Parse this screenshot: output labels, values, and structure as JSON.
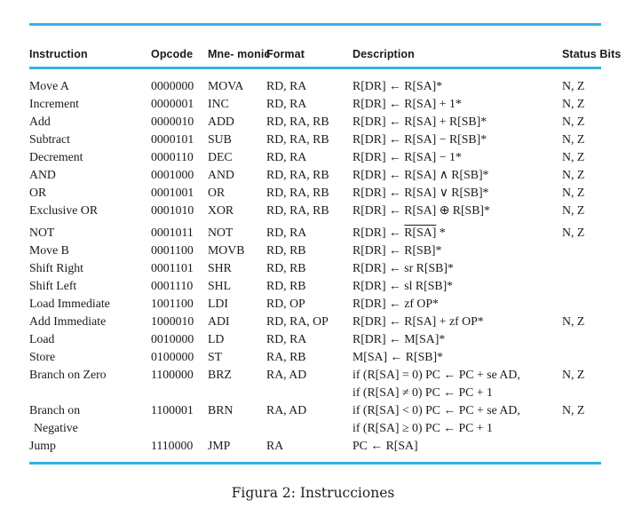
{
  "colors": {
    "rule": "#35b2e3",
    "text": "#1a1a1a"
  },
  "header": {
    "instruction": "Instruction",
    "opcode": "Opcode",
    "mnemonic": "Mne-\nmonic",
    "format": "Format",
    "description": "Description",
    "status": "Status\nBits"
  },
  "rows": [
    {
      "instruction": "Move A",
      "instruction_line2": "",
      "opcode": "0000000",
      "mnemonic": "MOVA",
      "format": "RD, RA",
      "desc": "R[DR] ← R[SA]*",
      "desc_over": "",
      "desc_post": "",
      "desc_line2": "",
      "status": "N, Z",
      "group_gap": false
    },
    {
      "instruction": "Increment",
      "instruction_line2": "",
      "opcode": "0000001",
      "mnemonic": "INC",
      "format": "RD, RA",
      "desc": "R[DR] ← R[SA] + 1*",
      "desc_over": "",
      "desc_post": "",
      "desc_line2": "",
      "status": "N, Z",
      "group_gap": false
    },
    {
      "instruction": "Add",
      "instruction_line2": "",
      "opcode": "0000010",
      "mnemonic": "ADD",
      "format": "RD, RA, RB",
      "desc": "R[DR] ← R[SA] + R[SB]*",
      "desc_over": "",
      "desc_post": "",
      "desc_line2": "",
      "status": "N, Z",
      "group_gap": false
    },
    {
      "instruction": "Subtract",
      "instruction_line2": "",
      "opcode": "0000101",
      "mnemonic": "SUB",
      "format": "RD, RA, RB",
      "desc": "R[DR] ← R[SA] − R[SB]*",
      "desc_over": "",
      "desc_post": "",
      "desc_line2": "",
      "status": "N, Z",
      "group_gap": false
    },
    {
      "instruction": "Decrement",
      "instruction_line2": "",
      "opcode": "0000110",
      "mnemonic": "DEC",
      "format": "RD, RA",
      "desc": "R[DR] ← R[SA] − 1*",
      "desc_over": "",
      "desc_post": "",
      "desc_line2": "",
      "status": "N, Z",
      "group_gap": false
    },
    {
      "instruction": "AND",
      "instruction_line2": "",
      "opcode": "0001000",
      "mnemonic": "AND",
      "format": "RD, RA, RB",
      "desc": "R[DR] ← R[SA] ∧ R[SB]*",
      "desc_over": "",
      "desc_post": "",
      "desc_line2": "",
      "status": "N, Z",
      "group_gap": false
    },
    {
      "instruction": "OR",
      "instruction_line2": "",
      "opcode": "0001001",
      "mnemonic": "OR",
      "format": "RD, RA, RB",
      "desc": "R[DR] ← R[SA] ∨ R[SB]*",
      "desc_over": "",
      "desc_post": "",
      "desc_line2": "",
      "status": "N, Z",
      "group_gap": false
    },
    {
      "instruction": "Exclusive OR",
      "instruction_line2": "",
      "opcode": "0001010",
      "mnemonic": "XOR",
      "format": "RD, RA, RB",
      "desc": "R[DR] ← R[SA] ⊕ R[SB]*",
      "desc_over": "",
      "desc_post": "",
      "desc_line2": "",
      "status": "N, Z",
      "group_gap": false
    },
    {
      "instruction": "NOT",
      "instruction_line2": "",
      "opcode": "0001011",
      "mnemonic": "NOT",
      "format": "RD, RA",
      "desc": "R[DR] ← ",
      "desc_over": "R[SA]",
      "desc_post": " *",
      "desc_line2": "",
      "status": "N, Z",
      "group_gap": true
    },
    {
      "instruction": "Move B",
      "instruction_line2": "",
      "opcode": "0001100",
      "mnemonic": "MOVB",
      "format": "RD, RB",
      "desc": "R[DR] ← R[SB]*",
      "desc_over": "",
      "desc_post": "",
      "desc_line2": "",
      "status": "",
      "group_gap": false
    },
    {
      "instruction": "Shift Right",
      "instruction_line2": "",
      "opcode": "0001101",
      "mnemonic": "SHR",
      "format": "RD, RB",
      "desc": "R[DR] ← sr R[SB]*",
      "desc_over": "",
      "desc_post": "",
      "desc_line2": "",
      "status": "",
      "group_gap": false
    },
    {
      "instruction": "Shift Left",
      "instruction_line2": "",
      "opcode": "0001110",
      "mnemonic": "SHL",
      "format": "RD, RB",
      "desc": "R[DR] ← sl R[SB]*",
      "desc_over": "",
      "desc_post": "",
      "desc_line2": "",
      "status": "",
      "group_gap": false
    },
    {
      "instruction": "Load Immediate",
      "instruction_line2": "",
      "opcode": "1001100",
      "mnemonic": "LDI",
      "format": "RD, OP",
      "desc": "R[DR] ← zf OP*",
      "desc_over": "",
      "desc_post": "",
      "desc_line2": "",
      "status": "",
      "group_gap": false
    },
    {
      "instruction": "Add Immediate",
      "instruction_line2": "",
      "opcode": "1000010",
      "mnemonic": "ADI",
      "format": "RD, RA, OP",
      "desc": "R[DR] ← R[SA] + zf OP*",
      "desc_over": "",
      "desc_post": "",
      "desc_line2": "",
      "status": "N, Z",
      "group_gap": false
    },
    {
      "instruction": "Load",
      "instruction_line2": "",
      "opcode": "0010000",
      "mnemonic": "LD",
      "format": "RD, RA",
      "desc": "R[DR] ← M[SA]*",
      "desc_over": "",
      "desc_post": "",
      "desc_line2": "",
      "status": "",
      "group_gap": false
    },
    {
      "instruction": "Store",
      "instruction_line2": "",
      "opcode": "0100000",
      "mnemonic": "ST",
      "format": "RA, RB",
      "desc": "M[SA] ← R[SB]*",
      "desc_over": "",
      "desc_post": "",
      "desc_line2": "",
      "status": "",
      "group_gap": false
    },
    {
      "instruction": "Branch on Zero",
      "instruction_line2": "",
      "opcode": "1100000",
      "mnemonic": "BRZ",
      "format": "RA, AD",
      "desc": "if (R[SA] = 0) PC ← PC + se AD,",
      "desc_over": "",
      "desc_post": "",
      "desc_line2": "if (R[SA] ≠ 0) PC ← PC + 1",
      "status": "N, Z",
      "group_gap": false
    },
    {
      "instruction": "Branch on",
      "instruction_line2": "Negative",
      "opcode": "1100001",
      "mnemonic": "BRN",
      "format": "RA, AD",
      "desc": "if (R[SA] < 0) PC ← PC + se AD,",
      "desc_over": "",
      "desc_post": "",
      "desc_line2": "if (R[SA] ≥ 0) PC ← PC + 1",
      "status": "N, Z",
      "group_gap": false
    },
    {
      "instruction": "Jump",
      "instruction_line2": "",
      "opcode": "1110000",
      "mnemonic": "JMP",
      "format": "RA",
      "desc": "PC ← R[SA]",
      "desc_over": "",
      "desc_post": "",
      "desc_line2": "",
      "status": "",
      "group_gap": false
    }
  ],
  "caption": "Figura 2: Instrucciones"
}
